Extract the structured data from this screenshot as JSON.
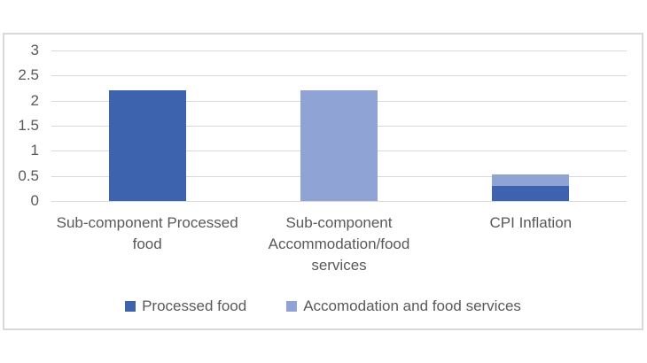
{
  "chart_data": {
    "type": "bar",
    "variant": "stacked-column",
    "title": "",
    "xlabel": "",
    "ylabel": "",
    "categories": [
      {
        "label": "Sub-component Processed food",
        "lines": [
          "Sub-component Processed",
          "food"
        ]
      },
      {
        "label": "Sub-component Accommodation/food services",
        "lines": [
          "Sub-component",
          "Accommodation/food",
          "services"
        ]
      },
      {
        "label": "CPI Inflation",
        "lines": [
          "CPI Inflation"
        ]
      }
    ],
    "series": [
      {
        "name": "Processed food",
        "color": "#3E63AE",
        "values": [
          2.2,
          0,
          0.3
        ]
      },
      {
        "name": "Accomodation and food services",
        "color": "#8FA3D5",
        "values": [
          0,
          2.2,
          0.23
        ]
      }
    ],
    "ylim": [
      0,
      3
    ],
    "yticks_top_to_bottom": [
      "3",
      "2.5",
      "2",
      "1.5",
      "1",
      "0.5",
      "0"
    ],
    "grid": true,
    "legend_position": "bottom"
  },
  "legend": {
    "items": [
      {
        "label": "Processed food",
        "color": "#3E63AE"
      },
      {
        "label": "Accomodation and food services",
        "color": "#8FA3D5"
      }
    ]
  },
  "styles": {
    "grid_color": "#D9D9D9",
    "frame_border_color": "#D9D9D9",
    "text_color": "#595959",
    "background": "#FFFFFF"
  }
}
